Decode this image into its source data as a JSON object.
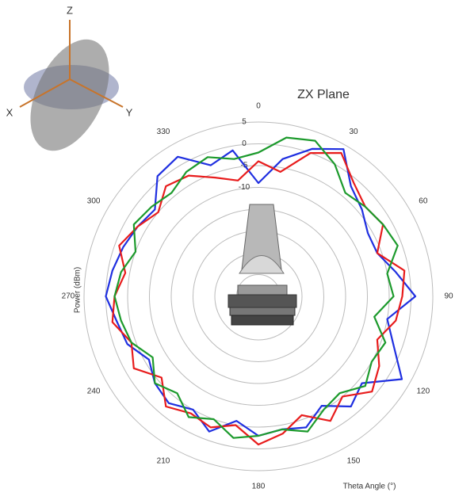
{
  "chart_data": {
    "type": "polar",
    "title": "ZX Plane",
    "theta_label": "Theta Angle (°)",
    "r_label": "Power (dBm)",
    "theta": [
      0,
      10,
      20,
      30,
      40,
      50,
      60,
      70,
      80,
      90,
      100,
      110,
      120,
      130,
      140,
      150,
      160,
      170,
      180,
      190,
      200,
      210,
      220,
      230,
      240,
      250,
      260,
      270,
      280,
      290,
      300,
      310,
      320,
      330,
      340,
      350
    ],
    "series": [
      {
        "color": "#1f2fe0",
        "values": [
          -9,
          -3,
          1,
          4,
          -2,
          -4,
          -6,
          -6,
          -3,
          1,
          -5,
          -2,
          3,
          -4,
          -2,
          -6,
          -3,
          -4,
          -3,
          -6,
          -2,
          -5,
          -3,
          -4,
          -6,
          -3,
          -2,
          0,
          -1,
          -2,
          -3,
          -4,
          1,
          2,
          -3,
          -1
        ]
      },
      {
        "color": "#e81c1c",
        "values": [
          -4,
          -6,
          0,
          3,
          -1,
          -3,
          -2,
          -6,
          -1,
          -2,
          -3,
          -6,
          -3,
          -1,
          -5,
          -2,
          -6,
          -3,
          -1,
          -5,
          -3,
          -4,
          -2,
          -6,
          -2,
          -4,
          -1,
          -2,
          -4,
          -1,
          -3,
          -5,
          -2,
          -3,
          -6,
          -8
        ]
      },
      {
        "color": "#1c9a2c",
        "values": [
          -2,
          2,
          3,
          0,
          -4,
          -3,
          -2,
          -1,
          -5,
          -4,
          -8,
          -4,
          -5,
          -3,
          -6,
          -5,
          -2,
          -4,
          -3,
          -2,
          -5,
          -3,
          -6,
          -4,
          -7,
          -4,
          -3,
          -2,
          -3,
          -5,
          -2,
          -3,
          -4,
          -2,
          -1,
          -3
        ]
      }
    ],
    "rlim": [
      -35,
      5
    ],
    "rgrid": [
      -30,
      -25,
      -20,
      -15,
      -10,
      -5,
      0,
      5
    ],
    "rticks": [
      5,
      0,
      -5,
      -10
    ],
    "thetaticks": [
      0,
      30,
      60,
      90,
      120,
      150,
      180,
      210,
      240,
      270,
      300,
      330
    ]
  },
  "axes_icon": {
    "labels": [
      "Z",
      "X",
      "Y"
    ]
  }
}
